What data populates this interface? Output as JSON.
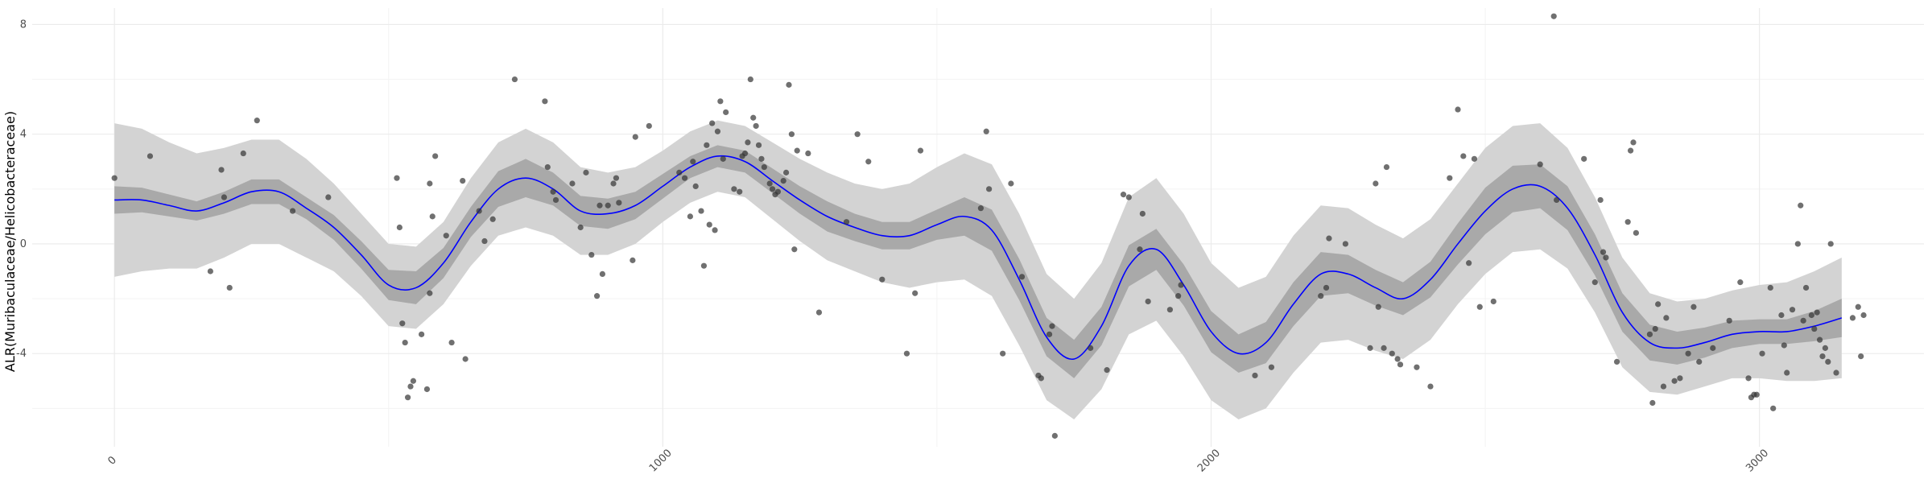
{
  "chart_data": {
    "type": "scatter",
    "title": "",
    "xlabel": "",
    "ylabel": "ALR(Muribaculaceae/Helicobacteraceae)",
    "xlim": [
      -150,
      3300
    ],
    "ylim": [
      -7.4,
      8.6
    ],
    "x_ticks": [
      0,
      1000,
      2000,
      3000
    ],
    "y_ticks": [
      -4,
      0,
      4,
      8
    ],
    "grid": true,
    "legend": "none",
    "colors": {
      "points": "#333333",
      "fit_line": "#0000ff",
      "band_outer": "#d3d3d3",
      "band_inner": "#a9a9a9",
      "grid_major": "#ebebeb",
      "grid_minor": "#f3f3f3"
    },
    "series": [
      {
        "type": "scatter",
        "points": [
          [
            0,
            2.4
          ],
          [
            65,
            3.2
          ],
          [
            175,
            -1.0
          ],
          [
            195,
            2.7
          ],
          [
            200,
            1.7
          ],
          [
            210,
            -1.6
          ],
          [
            235,
            3.3
          ],
          [
            260,
            4.5
          ],
          [
            325,
            1.2
          ],
          [
            390,
            1.7
          ],
          [
            515,
            2.4
          ],
          [
            520,
            0.6
          ],
          [
            525,
            -2.9
          ],
          [
            530,
            -3.6
          ],
          [
            535,
            -5.6
          ],
          [
            540,
            -5.2
          ],
          [
            545,
            -5.0
          ],
          [
            560,
            -3.3
          ],
          [
            570,
            -5.3
          ],
          [
            575,
            -1.8
          ],
          [
            575,
            2.2
          ],
          [
            580,
            1.0
          ],
          [
            585,
            3.2
          ],
          [
            605,
            0.3
          ],
          [
            615,
            -3.6
          ],
          [
            635,
            2.3
          ],
          [
            640,
            -4.2
          ],
          [
            665,
            1.2
          ],
          [
            675,
            0.1
          ],
          [
            690,
            0.9
          ],
          [
            730,
            6.0
          ],
          [
            785,
            5.2
          ],
          [
            790,
            2.8
          ],
          [
            800,
            1.9
          ],
          [
            805,
            1.6
          ],
          [
            835,
            2.2
          ],
          [
            850,
            0.6
          ],
          [
            860,
            2.6
          ],
          [
            870,
            -0.4
          ],
          [
            880,
            -1.9
          ],
          [
            885,
            1.4
          ],
          [
            890,
            -1.1
          ],
          [
            900,
            1.4
          ],
          [
            910,
            2.2
          ],
          [
            915,
            2.4
          ],
          [
            920,
            1.5
          ],
          [
            945,
            -0.6
          ],
          [
            950,
            3.9
          ],
          [
            975,
            4.3
          ],
          [
            1030,
            2.6
          ],
          [
            1040,
            2.4
          ],
          [
            1050,
            1.0
          ],
          [
            1055,
            3.0
          ],
          [
            1060,
            2.1
          ],
          [
            1070,
            1.2
          ],
          [
            1075,
            -0.8
          ],
          [
            1080,
            3.6
          ],
          [
            1085,
            0.7
          ],
          [
            1090,
            4.4
          ],
          [
            1095,
            0.5
          ],
          [
            1100,
            4.1
          ],
          [
            1105,
            5.2
          ],
          [
            1110,
            3.1
          ],
          [
            1115,
            4.8
          ],
          [
            1130,
            2.0
          ],
          [
            1140,
            1.9
          ],
          [
            1145,
            3.2
          ],
          [
            1150,
            3.3
          ],
          [
            1155,
            3.7
          ],
          [
            1160,
            6.0
          ],
          [
            1165,
            4.6
          ],
          [
            1170,
            4.3
          ],
          [
            1175,
            3.6
          ],
          [
            1180,
            3.1
          ],
          [
            1185,
            2.8
          ],
          [
            1195,
            2.2
          ],
          [
            1200,
            2.0
          ],
          [
            1205,
            1.8
          ],
          [
            1210,
            1.9
          ],
          [
            1220,
            2.3
          ],
          [
            1225,
            2.6
          ],
          [
            1230,
            5.8
          ],
          [
            1235,
            4.0
          ],
          [
            1240,
            -0.2
          ],
          [
            1245,
            3.4
          ],
          [
            1265,
            3.3
          ],
          [
            1285,
            -2.5
          ],
          [
            1335,
            0.8
          ],
          [
            1355,
            4.0
          ],
          [
            1375,
            3.0
          ],
          [
            1400,
            -1.3
          ],
          [
            1445,
            -4.0
          ],
          [
            1460,
            -1.8
          ],
          [
            1470,
            3.4
          ],
          [
            1580,
            1.3
          ],
          [
            1590,
            4.1
          ],
          [
            1595,
            2.0
          ],
          [
            1620,
            -4.0
          ],
          [
            1635,
            2.2
          ],
          [
            1655,
            -1.2
          ],
          [
            1685,
            -4.8
          ],
          [
            1690,
            -4.9
          ],
          [
            1705,
            -3.3
          ],
          [
            1710,
            -3.0
          ],
          [
            1715,
            -7.0
          ],
          [
            1780,
            -3.8
          ],
          [
            1810,
            -4.6
          ],
          [
            1840,
            1.8
          ],
          [
            1850,
            1.7
          ],
          [
            1870,
            -0.2
          ],
          [
            1875,
            1.1
          ],
          [
            1885,
            -2.1
          ],
          [
            1925,
            -2.4
          ],
          [
            1940,
            -1.9
          ],
          [
            1945,
            -1.5
          ],
          [
            2080,
            -4.8
          ],
          [
            2110,
            -4.5
          ],
          [
            2200,
            -1.9
          ],
          [
            2210,
            -1.6
          ],
          [
            2215,
            0.2
          ],
          [
            2245,
            -0.0
          ],
          [
            2290,
            -3.8
          ],
          [
            2300,
            2.2
          ],
          [
            2305,
            -2.3
          ],
          [
            2315,
            -3.8
          ],
          [
            2320,
            2.8
          ],
          [
            2330,
            -4.0
          ],
          [
            2340,
            -4.2
          ],
          [
            2345,
            -4.4
          ],
          [
            2375,
            -4.5
          ],
          [
            2400,
            -5.2
          ],
          [
            2435,
            2.4
          ],
          [
            2450,
            4.9
          ],
          [
            2460,
            3.2
          ],
          [
            2470,
            -0.7
          ],
          [
            2480,
            3.1
          ],
          [
            2490,
            -2.3
          ],
          [
            2515,
            -2.1
          ],
          [
            2600,
            2.9
          ],
          [
            2625,
            8.3
          ],
          [
            2630,
            1.6
          ],
          [
            2680,
            3.1
          ],
          [
            2700,
            -1.4
          ],
          [
            2710,
            1.6
          ],
          [
            2715,
            -0.3
          ],
          [
            2720,
            -0.5
          ],
          [
            2740,
            -4.3
          ],
          [
            2760,
            0.8
          ],
          [
            2765,
            3.4
          ],
          [
            2770,
            3.7
          ],
          [
            2775,
            0.4
          ],
          [
            2800,
            -3.3
          ],
          [
            2805,
            -5.8
          ],
          [
            2810,
            -3.1
          ],
          [
            2815,
            -2.2
          ],
          [
            2825,
            -5.2
          ],
          [
            2830,
            -2.7
          ],
          [
            2845,
            -5.0
          ],
          [
            2855,
            -4.9
          ],
          [
            2870,
            -4.0
          ],
          [
            2880,
            -2.3
          ],
          [
            2890,
            -4.3
          ],
          [
            2915,
            -3.8
          ],
          [
            2945,
            -2.8
          ],
          [
            2965,
            -1.4
          ],
          [
            2980,
            -4.9
          ],
          [
            2985,
            -5.6
          ],
          [
            2990,
            -5.5
          ],
          [
            2995,
            -5.5
          ],
          [
            3005,
            -4.0
          ],
          [
            3020,
            -1.6
          ],
          [
            3025,
            -6.0
          ],
          [
            3040,
            -2.6
          ],
          [
            3045,
            -3.7
          ],
          [
            3050,
            -4.7
          ],
          [
            3060,
            -2.4
          ],
          [
            3070,
            0.0
          ],
          [
            3075,
            1.4
          ],
          [
            3080,
            -2.8
          ],
          [
            3085,
            -1.6
          ],
          [
            3095,
            -2.6
          ],
          [
            3100,
            -3.1
          ],
          [
            3105,
            -2.5
          ],
          [
            3110,
            -3.5
          ],
          [
            3115,
            -4.1
          ],
          [
            3120,
            -3.8
          ],
          [
            3125,
            -4.3
          ],
          [
            3130,
            0.0
          ],
          [
            3140,
            -4.7
          ],
          [
            3170,
            -2.7
          ],
          [
            3180,
            -2.3
          ],
          [
            3185,
            -4.1
          ],
          [
            3190,
            -2.6
          ]
        ]
      },
      {
        "type": "line",
        "x": [
          0,
          50,
          100,
          150,
          200,
          250,
          300,
          350,
          400,
          450,
          500,
          550,
          600,
          650,
          700,
          750,
          800,
          850,
          900,
          950,
          1000,
          1050,
          1100,
          1150,
          1200,
          1250,
          1300,
          1350,
          1400,
          1450,
          1500,
          1550,
          1600,
          1650,
          1700,
          1750,
          1800,
          1850,
          1900,
          1950,
          2000,
          2050,
          2100,
          2150,
          2200,
          2250,
          2300,
          2350,
          2400,
          2450,
          2500,
          2550,
          2600,
          2650,
          2700,
          2750,
          2800,
          2850,
          2900,
          2950,
          3000,
          3050,
          3100,
          3150
        ],
        "y": [
          1.6,
          1.6,
          1.4,
          1.2,
          1.5,
          1.9,
          1.9,
          1.3,
          0.6,
          -0.4,
          -1.5,
          -1.6,
          -0.7,
          0.8,
          2.0,
          2.4,
          2.0,
          1.2,
          1.1,
          1.4,
          2.1,
          2.8,
          3.2,
          3.0,
          2.3,
          1.6,
          1.0,
          0.6,
          0.3,
          0.3,
          0.7,
          1.0,
          0.5,
          -1.3,
          -3.4,
          -4.2,
          -3.0,
          -0.8,
          -0.2,
          -1.5,
          -3.2,
          -4.0,
          -3.6,
          -2.2,
          -1.1,
          -1.1,
          -1.6,
          -2.0,
          -1.3,
          0.0,
          1.2,
          2.0,
          2.1,
          1.3,
          -0.4,
          -2.5,
          -3.6,
          -3.8,
          -3.6,
          -3.3,
          -3.2,
          -3.2,
          -3.0,
          -2.7
        ]
      },
      {
        "type": "band",
        "name": "",
        "x": [
          0,
          50,
          100,
          150,
          200,
          250,
          300,
          350,
          400,
          450,
          500,
          550,
          600,
          650,
          700,
          750,
          800,
          850,
          900,
          950,
          1000,
          1050,
          1100,
          1150,
          1200,
          1250,
          1300,
          1350,
          1400,
          1450,
          1500,
          1550,
          1600,
          1650,
          1700,
          1750,
          1800,
          1850,
          1900,
          1950,
          2000,
          2050,
          2100,
          2150,
          2200,
          2250,
          2300,
          2350,
          2400,
          2450,
          2500,
          2550,
          2600,
          2650,
          2700,
          2750,
          2800,
          2850,
          2900,
          2950,
          3000,
          3050,
          3100,
          3150
        ],
        "inner_half_width": [
          0.5,
          0.45,
          0.4,
          0.35,
          0.4,
          0.45,
          0.45,
          0.4,
          0.45,
          0.5,
          0.55,
          0.6,
          0.55,
          0.55,
          0.65,
          0.7,
          0.6,
          0.55,
          0.55,
          0.5,
          0.45,
          0.4,
          0.4,
          0.4,
          0.45,
          0.5,
          0.55,
          0.5,
          0.5,
          0.5,
          0.55,
          0.7,
          0.75,
          0.75,
          0.7,
          0.7,
          0.7,
          0.75,
          0.75,
          0.75,
          0.75,
          0.7,
          0.75,
          0.8,
          0.8,
          0.7,
          0.65,
          0.6,
          0.65,
          0.75,
          0.85,
          0.85,
          0.8,
          0.8,
          0.75,
          0.7,
          0.65,
          0.6,
          0.55,
          0.5,
          0.45,
          0.45,
          0.55,
          0.7
        ],
        "outer_half_width": [
          2.8,
          2.6,
          2.3,
          2.1,
          2.0,
          1.9,
          1.9,
          1.8,
          1.6,
          1.5,
          1.5,
          1.5,
          1.5,
          1.6,
          1.7,
          1.8,
          1.7,
          1.6,
          1.5,
          1.4,
          1.3,
          1.3,
          1.3,
          1.3,
          1.4,
          1.5,
          1.6,
          1.6,
          1.7,
          1.9,
          2.1,
          2.3,
          2.4,
          2.4,
          2.3,
          2.2,
          2.3,
          2.5,
          2.6,
          2.6,
          2.5,
          2.4,
          2.4,
          2.5,
          2.5,
          2.4,
          2.3,
          2.2,
          2.2,
          2.2,
          2.3,
          2.3,
          2.3,
          2.2,
          2.1,
          2.0,
          1.8,
          1.7,
          1.6,
          1.6,
          1.7,
          1.8,
          2.0,
          2.2
        ]
      }
    ]
  }
}
